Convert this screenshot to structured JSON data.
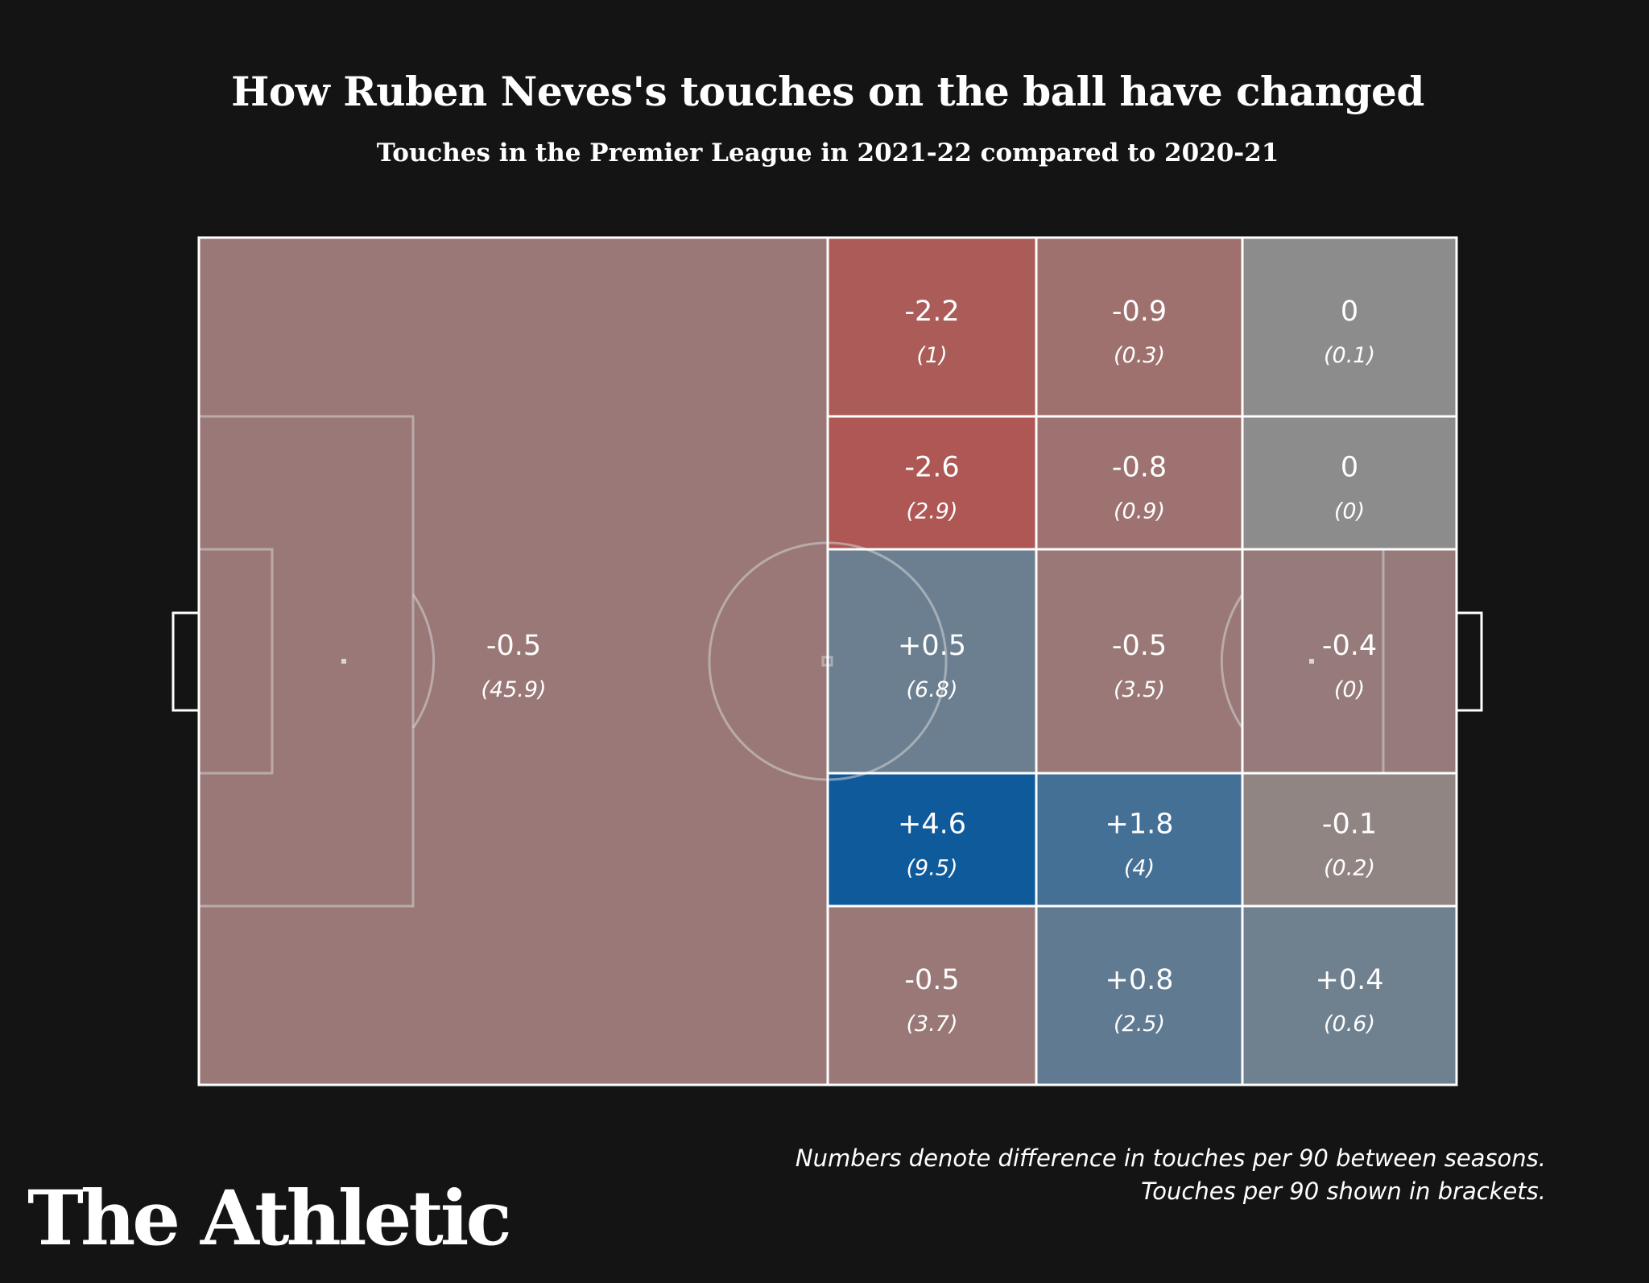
{
  "header": {
    "title": "How Ruben Neves's touches on the ball have changed",
    "subtitle": "Touches in the Premier League in 2021-22 compared to 2020-21"
  },
  "chart_data": {
    "type": "heatmap",
    "title": "How Ruben Neves's touches on the ball have changed",
    "subtitle": "Touches in the Premier League in 2021-22 compared to 2020-21",
    "value_label": "difference in touches per 90 between seasons",
    "secondary_label": "touches per 90",
    "colors": {
      "negative": "#b3504c",
      "neutral": "#8c8c8c",
      "positive": "#0f5a9b",
      "background": "#141414",
      "lines": "#ffffff"
    },
    "zones": [
      {
        "id": "own-half",
        "col": "own-half",
        "row": "all",
        "value": "-0.5",
        "touches": "(45.9)",
        "diff": -0.5
      },
      {
        "id": "c1r1",
        "col": 1,
        "row": 1,
        "value": "-2.2",
        "touches": "(1)",
        "diff": -2.2
      },
      {
        "id": "c2r1",
        "col": 2,
        "row": 1,
        "value": "-0.9",
        "touches": "(0.3)",
        "diff": -0.9
      },
      {
        "id": "c3r1",
        "col": 3,
        "row": 1,
        "value": "0",
        "touches": "(0.1)",
        "diff": 0
      },
      {
        "id": "c1r2",
        "col": 1,
        "row": 2,
        "value": "-2.6",
        "touches": "(2.9)",
        "diff": -2.6
      },
      {
        "id": "c2r2",
        "col": 2,
        "row": 2,
        "value": "-0.8",
        "touches": "(0.9)",
        "diff": -0.8
      },
      {
        "id": "c3r2",
        "col": 3,
        "row": 2,
        "value": "0",
        "touches": "(0)",
        "diff": 0
      },
      {
        "id": "c1r3",
        "col": 1,
        "row": 3,
        "value": "+0.5",
        "touches": "(6.8)",
        "diff": 0.5
      },
      {
        "id": "c2r3",
        "col": 2,
        "row": 3,
        "value": "-0.5",
        "touches": "(3.5)",
        "diff": -0.5
      },
      {
        "id": "c3r3",
        "col": 3,
        "row": 3,
        "value": "-0.4",
        "touches": "(0)",
        "diff": -0.4
      },
      {
        "id": "c1r4",
        "col": 1,
        "row": 4,
        "value": "+4.6",
        "touches": "(9.5)",
        "diff": 4.6
      },
      {
        "id": "c2r4",
        "col": 2,
        "row": 4,
        "value": "+1.8",
        "touches": "(4)",
        "diff": 1.8
      },
      {
        "id": "c3r4",
        "col": 3,
        "row": 4,
        "value": "-0.1",
        "touches": "(0.2)",
        "diff": -0.1
      },
      {
        "id": "c1r5",
        "col": 1,
        "row": 5,
        "value": "-0.5",
        "touches": "(3.7)",
        "diff": -0.5
      },
      {
        "id": "c2r5",
        "col": 2,
        "row": 5,
        "value": "+0.8",
        "touches": "(2.5)",
        "diff": 0.8
      },
      {
        "id": "c3r5",
        "col": 3,
        "row": 5,
        "value": "+0.4",
        "touches": "(0.6)",
        "diff": 0.4
      }
    ]
  },
  "footer": {
    "note_line1": "Numbers denote difference in touches per 90 between seasons.",
    "note_line2": "Touches per 90 shown in brackets.",
    "logo": "The Athletic"
  }
}
